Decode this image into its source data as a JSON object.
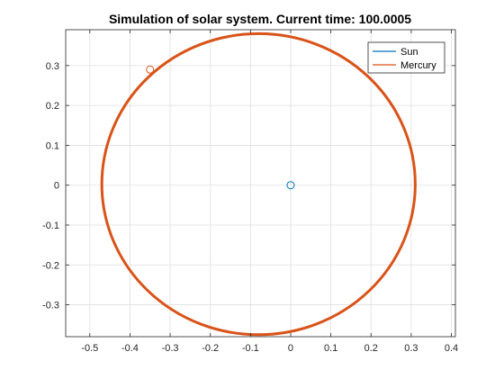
{
  "chart_data": {
    "type": "line",
    "title": "Simulation of solar system. Current time: 100.0005",
    "xlabel": "",
    "ylabel": "",
    "xlim": [
      -0.56,
      0.41
    ],
    "ylim": [
      -0.38,
      0.39
    ],
    "xticks": [
      -0.5,
      -0.4,
      -0.3,
      -0.2,
      -0.1,
      0,
      0.1,
      0.2,
      0.3,
      0.4
    ],
    "xtick_labels": [
      "-0.5",
      "-0.4",
      "-0.3",
      "-0.2",
      "-0.1",
      "0",
      "0.1",
      "0.2",
      "0.3",
      "0.4"
    ],
    "yticks": [
      -0.3,
      -0.2,
      -0.1,
      0,
      0.1,
      0.2,
      0.3
    ],
    "ytick_labels": [
      "-0.3",
      "-0.2",
      "-0.1",
      "0",
      "0.1",
      "0.2",
      "0.3"
    ],
    "grid": true,
    "legend_position": "top-right",
    "series": [
      {
        "name": "Sun",
        "color": "#0072bd",
        "trajectory": {
          "shape": "point",
          "center": [
            0,
            0
          ]
        },
        "current_position": [
          0,
          0
        ]
      },
      {
        "name": "Mercury",
        "color": "#d95319",
        "trajectory": {
          "shape": "ellipse",
          "x_range": [
            -0.47,
            0.31
          ],
          "y_range": [
            -0.375,
            0.38
          ]
        },
        "current_position": [
          -0.35,
          0.29
        ]
      }
    ]
  }
}
